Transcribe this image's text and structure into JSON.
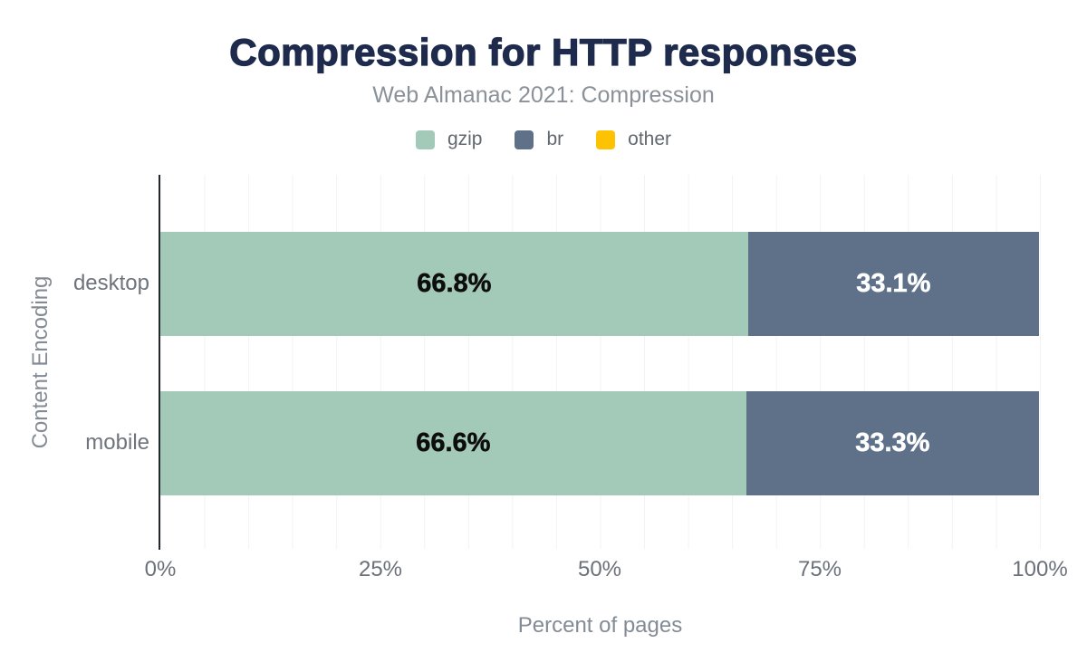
{
  "chart_data": {
    "type": "bar",
    "orientation": "horizontal",
    "stacked": true,
    "title": "Compression for HTTP responses",
    "subtitle": "Web Almanac 2021: Compression",
    "title_color": "#1e2b4d",
    "categories": [
      "desktop",
      "mobile"
    ],
    "series": [
      {
        "name": "gzip",
        "color": "#a3c9b8",
        "label_text_color": "#0d0d0d",
        "values": [
          66.8,
          66.6
        ],
        "labels": [
          "66.8%",
          "66.6%"
        ]
      },
      {
        "name": "br",
        "color": "#5e7189",
        "label_text_color": "#ffffff",
        "values": [
          33.1,
          33.3
        ],
        "labels": [
          "33.1%",
          "33.3%"
        ]
      },
      {
        "name": "other",
        "color": "#fdc303",
        "values": [
          null,
          null
        ],
        "labels": [
          "",
          ""
        ]
      }
    ],
    "xlabel": "Percent of pages",
    "ylabel": "Content Encoding",
    "x_ticks": [
      "0%",
      "25%",
      "50%",
      "75%",
      "100%"
    ],
    "x_tick_values": [
      0,
      25,
      50,
      75,
      100
    ],
    "xlim": [
      0,
      100
    ],
    "grid": {
      "vertical_interval_pct": 5,
      "color": "#f1f3f4"
    },
    "legend_position": "top",
    "axis_color": "#24292f"
  }
}
